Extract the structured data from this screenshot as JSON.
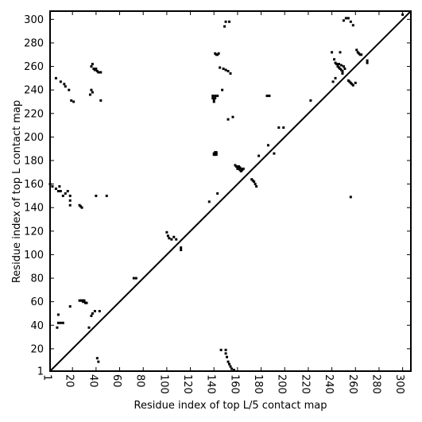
{
  "chart_data": {
    "type": "scatter",
    "title": "",
    "xlabel": "Residue index of top L/5 contact map",
    "ylabel": "Residue index of top L contact map",
    "xlim": [
      1,
      307
    ],
    "ylim": [
      1,
      307
    ],
    "xticks": [
      1,
      20,
      40,
      60,
      80,
      100,
      120,
      140,
      160,
      180,
      200,
      220,
      240,
      260,
      280,
      300
    ],
    "yticks": [
      1,
      20,
      40,
      60,
      80,
      100,
      120,
      140,
      160,
      180,
      200,
      220,
      240,
      260,
      280,
      300
    ],
    "grid": false,
    "diagonal_line": true,
    "marker": "square",
    "colors": {
      "marker": "#000000",
      "axes": "#000000",
      "background": "#ffffff"
    },
    "series": [
      {
        "points": [
          [
            1,
            160
          ],
          [
            3,
            158
          ],
          [
            6,
            156
          ],
          [
            9,
            158
          ],
          [
            8,
            154
          ],
          [
            10,
            154
          ],
          [
            12,
            150
          ],
          [
            14,
            152
          ],
          [
            16,
            154
          ],
          [
            18,
            150
          ],
          [
            18,
            146
          ],
          [
            18,
            142
          ],
          [
            26,
            142
          ],
          [
            27,
            141
          ],
          [
            28,
            140
          ],
          [
            40,
            150
          ],
          [
            49,
            150
          ],
          [
            8,
            42
          ],
          [
            10,
            42
          ],
          [
            12,
            42
          ],
          [
            8,
            49
          ],
          [
            7,
            38
          ],
          [
            18,
            56
          ],
          [
            26,
            61
          ],
          [
            27,
            61
          ],
          [
            28,
            61
          ],
          [
            29,
            60
          ],
          [
            30,
            60
          ],
          [
            31,
            59
          ],
          [
            32,
            59
          ],
          [
            29,
            61
          ],
          [
            30,
            61
          ],
          [
            36,
            48
          ],
          [
            37,
            50
          ],
          [
            39,
            52
          ],
          [
            43,
            52
          ],
          [
            34,
            38
          ],
          [
            41,
            12
          ],
          [
            42,
            9
          ],
          [
            72,
            80
          ],
          [
            74,
            80
          ],
          [
            6,
            250
          ],
          [
            10,
            247
          ],
          [
            13,
            245
          ],
          [
            14,
            243
          ],
          [
            17,
            240
          ],
          [
            19,
            231
          ],
          [
            21,
            230
          ],
          [
            36,
            260
          ],
          [
            37,
            262
          ],
          [
            38,
            258
          ],
          [
            39,
            257
          ],
          [
            40,
            258
          ],
          [
            41,
            256
          ],
          [
            42,
            255
          ],
          [
            43,
            255
          ],
          [
            44,
            255
          ],
          [
            36,
            240
          ],
          [
            37,
            238
          ],
          [
            35,
            236
          ],
          [
            44,
            231
          ],
          [
            100,
            119
          ],
          [
            101,
            116
          ],
          [
            102,
            114
          ],
          [
            104,
            113
          ],
          [
            106,
            115
          ],
          [
            108,
            113
          ],
          [
            112,
            104
          ],
          [
            112,
            106
          ],
          [
            140,
            232
          ],
          [
            141,
            233
          ],
          [
            139,
            233
          ],
          [
            139,
            235
          ],
          [
            141,
            235
          ],
          [
            143,
            235
          ],
          [
            140,
            230
          ],
          [
            140,
            186
          ],
          [
            141,
            186
          ],
          [
            142,
            186
          ],
          [
            140,
            185
          ],
          [
            141,
            185
          ],
          [
            142,
            185
          ],
          [
            141,
            187
          ],
          [
            142,
            187
          ],
          [
            143,
            152
          ],
          [
            136,
            145
          ],
          [
            141,
            271
          ],
          [
            142,
            270
          ],
          [
            143,
            270
          ],
          [
            144,
            271
          ],
          [
            145,
            259
          ],
          [
            147,
            240
          ],
          [
            148,
            258
          ],
          [
            150,
            257
          ],
          [
            152,
            256
          ],
          [
            154,
            254
          ],
          [
            149,
            294
          ],
          [
            150,
            298
          ],
          [
            153,
            298
          ],
          [
            152,
            215
          ],
          [
            156,
            217
          ],
          [
            158,
            176
          ],
          [
            159,
            175
          ],
          [
            160,
            174
          ],
          [
            161,
            175
          ],
          [
            162,
            174
          ],
          [
            163,
            173
          ],
          [
            164,
            172
          ],
          [
            160,
            173
          ],
          [
            162,
            172
          ],
          [
            163,
            171
          ],
          [
            165,
            173
          ],
          [
            172,
            164
          ],
          [
            173,
            163
          ],
          [
            174,
            162
          ],
          [
            175,
            160
          ],
          [
            176,
            158
          ],
          [
            178,
            184
          ],
          [
            185,
            235
          ],
          [
            187,
            235
          ],
          [
            186,
            193
          ],
          [
            191,
            186
          ],
          [
            195,
            208
          ],
          [
            199,
            208
          ],
          [
            222,
            231
          ],
          [
            240,
            272
          ],
          [
            242,
            266
          ],
          [
            243,
            263
          ],
          [
            244,
            262
          ],
          [
            245,
            260
          ],
          [
            246,
            259
          ],
          [
            247,
            258
          ],
          [
            248,
            257
          ],
          [
            249,
            256
          ],
          [
            246,
            262
          ],
          [
            248,
            261
          ],
          [
            250,
            260
          ],
          [
            251,
            258
          ],
          [
            249,
            254
          ],
          [
            241,
            247
          ],
          [
            243,
            250
          ],
          [
            247,
            272
          ],
          [
            250,
            299
          ],
          [
            252,
            301
          ],
          [
            254,
            301
          ],
          [
            256,
            298
          ],
          [
            258,
            295
          ],
          [
            254,
            248
          ],
          [
            255,
            247
          ],
          [
            256,
            246
          ],
          [
            257,
            245
          ],
          [
            258,
            244
          ],
          [
            256,
            149
          ],
          [
            261,
            274
          ],
          [
            262,
            272
          ],
          [
            263,
            271
          ],
          [
            264,
            270
          ],
          [
            265,
            270
          ],
          [
            270,
            265
          ],
          [
            270,
            263
          ],
          [
            260,
            246
          ],
          [
            146,
            19
          ],
          [
            150,
            16
          ],
          [
            151,
            13
          ],
          [
            152,
            9
          ],
          [
            153,
            7
          ],
          [
            154,
            5
          ],
          [
            155,
            3
          ],
          [
            157,
            2
          ],
          [
            150,
            19
          ],
          [
            300,
            304
          ]
        ]
      }
    ]
  }
}
